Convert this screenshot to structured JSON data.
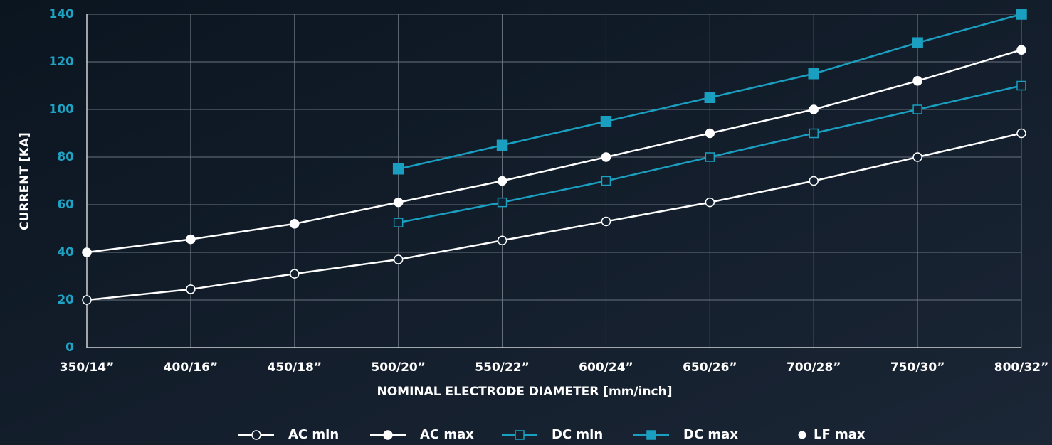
{
  "chart_data": {
    "type": "line",
    "xlabel": "NOMINAL ELECTRODE DIAMETER [mm/inch]",
    "ylabel": "CURRENT [KA]",
    "categories": [
      "350/14”",
      "400/16”",
      "450/18”",
      "500/20”",
      "550/22”",
      "600/24”",
      "650/26”",
      "700/28”",
      "750/30”",
      "800/32”"
    ],
    "ylim": [
      0,
      140
    ],
    "yticks": [
      0,
      20,
      40,
      60,
      80,
      100,
      120,
      140
    ],
    "grid": true,
    "legend": "bottom",
    "series": [
      {
        "name": "AC min",
        "color": "#ffffff",
        "marker": "circle",
        "filled": false,
        "values": [
          20,
          24.5,
          31,
          37,
          45,
          53,
          61,
          70,
          80,
          90
        ]
      },
      {
        "name": "AC max",
        "color": "#ffffff",
        "marker": "circle",
        "filled": true,
        "values": [
          40,
          45.5,
          52,
          61,
          70,
          80,
          90,
          100,
          112,
          125
        ]
      },
      {
        "name": "DC min",
        "color": "#1a9fc0",
        "marker": "square",
        "filled": false,
        "values": [
          null,
          null,
          null,
          52.5,
          61,
          70,
          80,
          90,
          100,
          110
        ]
      },
      {
        "name": "DC max",
        "color": "#1a9fc0",
        "marker": "square",
        "filled": true,
        "values": [
          null,
          null,
          null,
          75,
          85,
          95,
          105,
          115,
          128,
          140
        ]
      },
      {
        "name": "LF max",
        "color": "#ffffff",
        "marker": "dot",
        "filled": true,
        "values": [
          null,
          null,
          null,
          null,
          null,
          null,
          null,
          null,
          null,
          null
        ]
      }
    ]
  }
}
